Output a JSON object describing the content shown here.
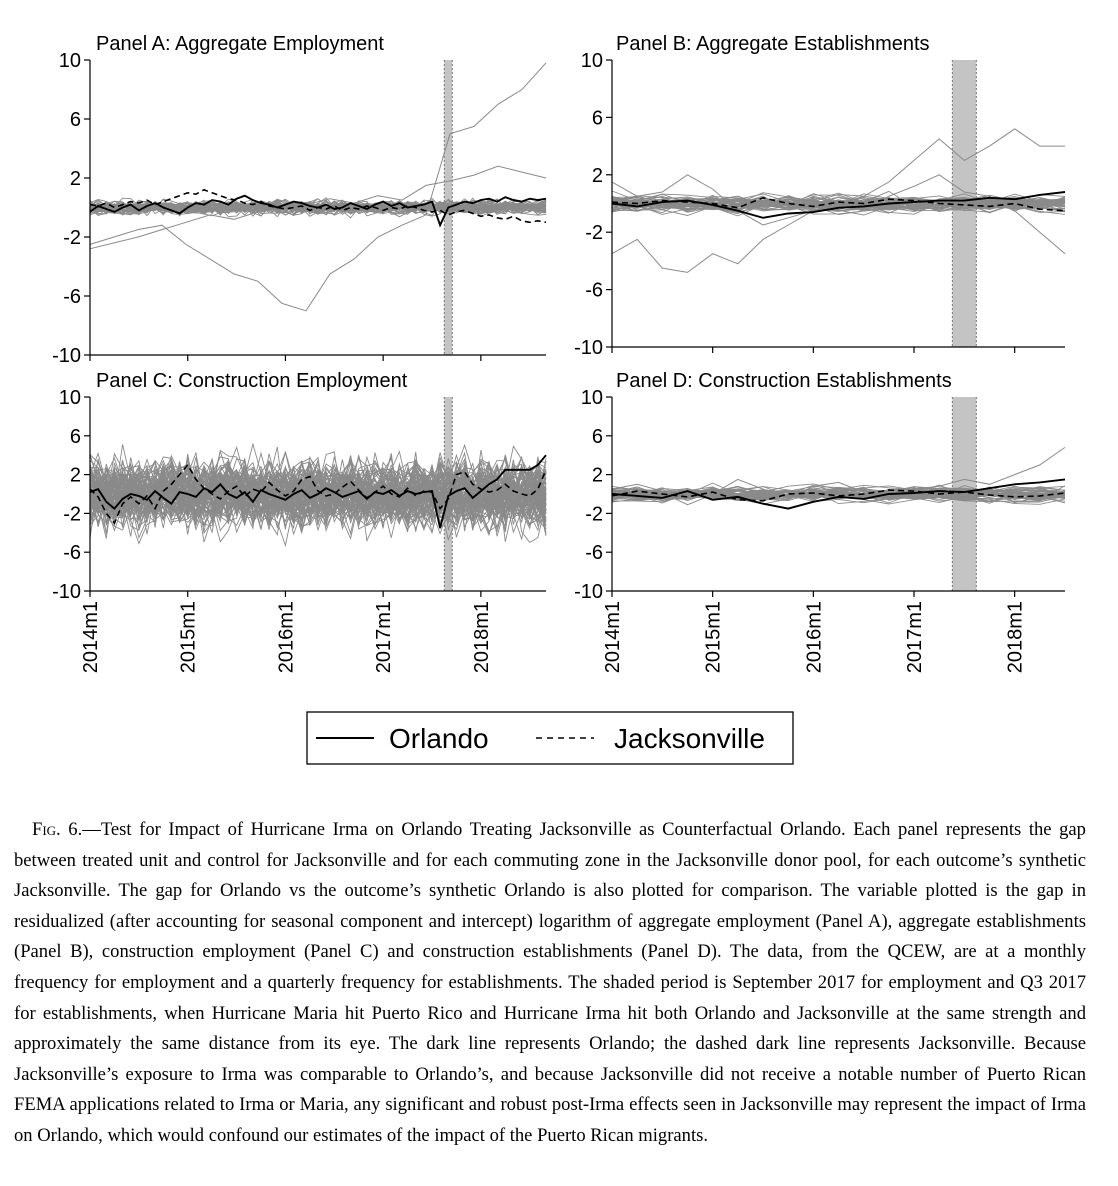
{
  "chart_data": [
    {
      "type": "line",
      "panel": "A",
      "title": "Panel A: Aggregate Employment",
      "ylim": [
        -10,
        10
      ],
      "yticks": [
        "10",
        "6",
        "2",
        "-2",
        "-6",
        "-10"
      ],
      "xticks": [],
      "frequency": "monthly",
      "x_range": [
        "2014m1",
        "2018m9"
      ],
      "shaded_period": "2017m9",
      "donor_pool_lines": "gray",
      "series": [
        {
          "name": "Orlando",
          "style": "solid",
          "values": [
            -0.3,
            0.1,
            -0.1,
            -0.3,
            0.0,
            0.2,
            -0.2,
            0.1,
            0.3,
            0.0,
            -0.2,
            -0.4,
            0.0,
            0.3,
            0.2,
            0.5,
            0.4,
            0.2,
            0.6,
            0.8,
            0.5,
            0.3,
            0.2,
            0.0,
            0.2,
            0.4,
            0.3,
            0.1,
            0.0,
            0.2,
            -0.1,
            0.0,
            0.3,
            0.1,
            -0.1,
            0.2,
            0.4,
            0.1,
            0.3,
            0.0,
            0.1,
            0.2,
            0.4,
            -1.2,
            0.0,
            0.2,
            0.4,
            0.3,
            0.5,
            0.6,
            0.4,
            0.7,
            0.5,
            0.4,
            0.6,
            0.5,
            0.6
          ]
        },
        {
          "name": "Jacksonville",
          "style": "dashed",
          "values": [
            0.2,
            0.1,
            0.3,
            0.0,
            0.2,
            0.4,
            0.3,
            0.5,
            0.2,
            0.4,
            0.6,
            0.8,
            1.0,
            0.9,
            1.2,
            1.0,
            0.8,
            0.6,
            0.5,
            0.3,
            0.2,
            0.4,
            0.1,
            0.0,
            -0.1,
            0.0,
            0.1,
            -0.2,
            0.0,
            -0.1,
            0.1,
            -0.2,
            0.0,
            -0.1,
            0.1,
            0.0,
            -0.2,
            0.0,
            -0.1,
            0.1,
            0.0,
            -0.2,
            -0.3,
            -0.2,
            -0.5,
            -0.3,
            -0.2,
            -0.4,
            -0.6,
            -0.5,
            -0.7,
            -0.8,
            -0.6,
            -0.9,
            -1.0,
            -0.9,
            -1.0
          ]
        }
      ]
    },
    {
      "type": "line",
      "panel": "B",
      "title": "Panel B: Aggregate Establishments",
      "ylim": [
        -10,
        10
      ],
      "yticks": [
        "10",
        "6",
        "2",
        "-2",
        "-6",
        "-10"
      ],
      "xticks": [],
      "frequency": "quarterly",
      "x_range": [
        "2014q1",
        "2018q3"
      ],
      "shaded_period": "2017q3",
      "donor_pool_lines": "gray",
      "series": [
        {
          "name": "Orlando",
          "style": "solid",
          "values": [
            0.0,
            -0.2,
            0.1,
            0.2,
            -0.1,
            -0.5,
            -1.0,
            -0.7,
            -0.6,
            -0.3,
            -0.2,
            0.0,
            0.1,
            0.2,
            0.2,
            0.4,
            0.3,
            0.6,
            0.8
          ]
        },
        {
          "name": "Jacksonville",
          "style": "dashed",
          "values": [
            0.1,
            0.0,
            0.2,
            0.1,
            0.0,
            -0.3,
            0.4,
            0.0,
            -0.2,
            0.1,
            0.0,
            0.3,
            0.2,
            0.0,
            -0.1,
            -0.2,
            0.0,
            -0.4,
            -0.5
          ]
        }
      ]
    },
    {
      "type": "line",
      "panel": "C",
      "title": "Panel C: Construction Employment",
      "ylim": [
        -10,
        10
      ],
      "yticks": [
        "10",
        "6",
        "2",
        "-2",
        "-6",
        "-10"
      ],
      "xticks": [
        "2014m1",
        "2015m1",
        "2016m1",
        "2017m1",
        "2018m1"
      ],
      "frequency": "monthly",
      "x_range": [
        "2014m1",
        "2018m9"
      ],
      "shaded_period": "2017m9",
      "donor_pool_lines": "gray",
      "series": [
        {
          "name": "Orlando",
          "style": "solid",
          "values": [
            0.2,
            0.5,
            -0.8,
            -1.5,
            -0.5,
            0.0,
            -0.2,
            -0.6,
            0.3,
            -0.4,
            -1.0,
            0.2,
            0.0,
            -0.3,
            0.6,
            0.2,
            1.0,
            0.0,
            -0.4,
            0.2,
            -0.8,
            0.4,
            0.0,
            -0.3,
            -0.6,
            0.0,
            0.4,
            -0.4,
            0.0,
            0.6,
            0.2,
            -0.3,
            0.0,
            0.3,
            -0.5,
            0.2,
            0.0,
            0.4,
            -0.2,
            0.3,
            0.0,
            0.2,
            0.3,
            -3.5,
            -0.2,
            0.3,
            0.6,
            -0.4,
            0.3,
            1.0,
            1.5,
            2.5,
            2.5,
            2.5,
            2.5,
            3.0,
            4.0
          ]
        },
        {
          "name": "Jacksonville",
          "style": "dashed",
          "values": [
            0.5,
            -0.3,
            -2.0,
            -3.0,
            -1.0,
            -0.3,
            -1.0,
            -0.2,
            -1.5,
            0.3,
            1.0,
            2.0,
            3.0,
            1.5,
            0.6,
            0.0,
            -0.5,
            0.3,
            0.8,
            -0.3,
            0.5,
            0.2,
            1.2,
            0.4,
            -0.2,
            0.3,
            1.5,
            1.8,
            0.3,
            -0.2,
            0.0,
            0.7,
            1.3,
            0.4,
            -0.4,
            0.2,
            0.8,
            0.0,
            -0.3,
            0.6,
            -0.2,
            0.3,
            0.2,
            -1.5,
            -0.5,
            2.0,
            2.3,
            1.0,
            0.5,
            0.2,
            0.4,
            1.0,
            0.3,
            0.0,
            -0.2,
            0.5,
            2.5
          ]
        }
      ]
    },
    {
      "type": "line",
      "panel": "D",
      "title": "Panel D: Construction Establishments",
      "ylim": [
        -10,
        10
      ],
      "yticks": [
        "10",
        "6",
        "2",
        "-2",
        "-6",
        "-10"
      ],
      "xticks": [
        "2014m1",
        "2015m1",
        "2016m1",
        "2017m1",
        "2018m1"
      ],
      "frequency": "quarterly",
      "x_range": [
        "2014q1",
        "2018q3"
      ],
      "shaded_period": "2017q3",
      "donor_pool_lines": "gray",
      "series": [
        {
          "name": "Orlando",
          "style": "solid",
          "values": [
            0.0,
            -0.2,
            -0.4,
            0.3,
            -0.6,
            -0.3,
            -1.0,
            -1.5,
            -0.8,
            -0.3,
            -0.5,
            0.0,
            0.1,
            0.3,
            0.2,
            0.6,
            1.0,
            1.2,
            1.5
          ]
        },
        {
          "name": "Jacksonville",
          "style": "dashed",
          "values": [
            -0.2,
            0.3,
            0.0,
            -0.3,
            0.2,
            -0.6,
            -0.7,
            0.0,
            0.1,
            -0.2,
            0.0,
            0.4,
            0.3,
            0.0,
            0.2,
            -0.1,
            -0.3,
            -0.2,
            0.1
          ]
        }
      ]
    }
  ],
  "legend": {
    "items": [
      {
        "label": "Orlando",
        "style": "solid"
      },
      {
        "label": "Jacksonville",
        "style": "dashed"
      }
    ],
    "placement": "bottom-center"
  },
  "caption": {
    "label": "Fig. 6.",
    "text": "—Test for Impact of Hurricane Irma on Orlando Treating Jacksonville as Counterfactual Orlando. Each panel represents the gap between treated unit and control for Jacksonville and for each commuting zone in the Jacksonville donor pool, for each outcome’s synthetic Jacksonville. The gap for Orlando vs the outcome’s synthetic Orlando is also plotted for comparison. The variable plotted is the gap in residualized (after accounting for seasonal component and intercept) logarithm of aggregate employment (Panel A), aggregate establishments (Panel B), construction employment (Panel C) and construction establishments (Panel D). The data, from the QCEW, are at a monthly frequency for employment and a quarterly frequency for establishments. The shaded period is September 2017 for employment and Q3 2017 for establishments, when Hurricane Maria hit Puerto Rico and Hurricane Irma hit both Orlando and Jacksonville at the same strength and approximately the same distance from its eye. The dark line represents Orlando; the dashed dark line represents Jacksonville. Because Jacksonville’s exposure to Irma was comparable to Orlando’s, and because Jacksonville did not receive a notable number of Puerto Rican FEMA applications related to Irma or Maria, any significant and robust post-Irma effects seen in Jacksonville may represent the impact of Irma on Orlando, which would confound our estimates of the impact of the Puerto Rican migrants."
  }
}
